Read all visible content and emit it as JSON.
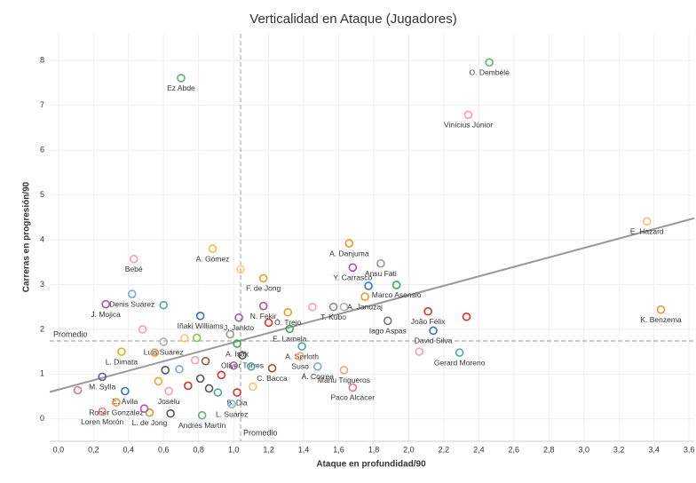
{
  "chart_data": {
    "type": "scatter",
    "title": "Verticalidad en Ataque (Jugadores)",
    "x_label": "Ataque en profundidad/90",
    "y_label": "Carreras en progresión/90",
    "xlim": [
      -0.05,
      3.63
    ],
    "ylim": [
      -0.5,
      8.6
    ],
    "xticks": [
      {
        "value": 0,
        "label": "0,0"
      },
      {
        "value": 0.2,
        "label": "0,2"
      },
      {
        "value": 0.4,
        "label": "0,4"
      },
      {
        "value": 0.6,
        "label": "0,6"
      },
      {
        "value": 0.8,
        "label": "0,8"
      },
      {
        "value": 1,
        "label": "1,0"
      },
      {
        "value": 1.2,
        "label": "1,2"
      },
      {
        "value": 1.4,
        "label": "1,4"
      },
      {
        "value": 1.6,
        "label": "1,6"
      },
      {
        "value": 1.8,
        "label": "1,8"
      },
      {
        "value": 2,
        "label": "2,0"
      },
      {
        "value": 2.2,
        "label": "2,2"
      },
      {
        "value": 2.4,
        "label": "2,4"
      },
      {
        "value": 2.6,
        "label": "2,6"
      },
      {
        "value": 2.8,
        "label": "2,8"
      },
      {
        "value": 3,
        "label": "3,0"
      },
      {
        "value": 3.2,
        "label": "3,2"
      },
      {
        "value": 3.4,
        "label": "3,4"
      },
      {
        "value": 3.6,
        "label": "3,6"
      }
    ],
    "yticks": [
      0,
      1,
      2,
      3,
      4,
      5,
      6,
      7,
      8
    ],
    "grid": true,
    "reference_lines": {
      "x": {
        "value": 1.04,
        "label": "Promedio"
      },
      "y": {
        "value": 1.74,
        "label": "Promedio"
      }
    },
    "trendline": {
      "x": [
        -0.05,
        3.63
      ],
      "y": [
        0.6,
        4.48
      ],
      "color": "#999999"
    },
    "labels": [
      "O. Dembélé",
      "Vinícius Júnior",
      "Ez Abde",
      "E. Hazard",
      "K. Benzema",
      "A. Danjuma",
      "Ansu Fati",
      "Y. Carrasco",
      "Marco Asensio",
      "A. Januzaj",
      "T. Kubo",
      "João Félix",
      "Iago Aspas",
      "David Silva",
      "Gerard Moreno",
      "A. Gómez",
      "F. de Jong",
      "Bebé",
      "Denis Suárez",
      "J. Mojica",
      "N. Fekir",
      "Ó. Trejo",
      "J. Jankto",
      "Iñaki Williams",
      "E. Lamela",
      "A. Isak",
      "Oliver Torres",
      "A. Sørloth",
      "Suso",
      "Á. Correa",
      "Manu Trigueros",
      "Paco Alcácer",
      "C. Bacca",
      "B. Dia",
      "L. Suárez",
      "Andrés Martín",
      "Luis Suárez",
      "L. Dimata",
      "M. Sylla",
      "E. Ávila",
      "Rober González",
      "Joselu",
      "Loren Morón",
      "L. de Jong",
      null,
      null,
      null,
      null,
      null,
      null,
      null,
      null,
      null,
      null,
      null,
      null,
      null,
      null,
      null,
      null,
      null,
      null,
      null,
      null,
      null,
      null,
      null,
      null,
      null,
      null,
      null,
      null,
      null
    ],
    "x": [
      2.46,
      2.34,
      0.7,
      3.36,
      3.44,
      1.66,
      1.84,
      1.68,
      1.93,
      1.75,
      1.57,
      2.11,
      1.88,
      2.14,
      2.29,
      0.88,
      1.17,
      0.43,
      0.42,
      0.27,
      1.17,
      1.31,
      1.03,
      0.81,
      1.32,
      1.02,
      1.05,
      1.39,
      1.38,
      1.48,
      1.63,
      1.68,
      1.22,
      1.02,
      0.99,
      0.82,
      0.6,
      0.36,
      0.25,
      0.38,
      0.33,
      0.63,
      0.25,
      0.52,
      1.77,
      2.33,
      1.63,
      1.04,
      0.6,
      0.48,
      0.72,
      0.79,
      0.98,
      1.45,
      1.2,
      2.06,
      0.55,
      0.61,
      0.69,
      0.78,
      0.84,
      0.93,
      1.0,
      0.81,
      0.74,
      0.86,
      0.91,
      1.11,
      0.11,
      0.49,
      0.64,
      0.57,
      1.1
    ],
    "values": [
      7.96,
      6.79,
      7.61,
      4.41,
      2.44,
      3.92,
      3.47,
      3.38,
      2.99,
      2.73,
      2.5,
      2.4,
      2.19,
      1.97,
      1.48,
      3.8,
      3.14,
      3.57,
      2.79,
      2.56,
      2.52,
      2.38,
      2.26,
      2.3,
      2.01,
      1.68,
      1.42,
      1.62,
      1.4,
      1.17,
      1.09,
      0.7,
      1.13,
      0.59,
      0.33,
      0.08,
      1.72,
      1.5,
      0.94,
      0.62,
      0.37,
      0.62,
      0.16,
      0.14,
      2.97,
      2.28,
      2.5,
      3.34,
      2.54,
      2.0,
      1.8,
      1.81,
      1.89,
      2.5,
      2.15,
      1.5,
      1.48,
      1.09,
      1.11,
      1.31,
      1.29,
      0.98,
      1.19,
      0.9,
      0.74,
      0.68,
      0.59,
      0.72,
      0.64,
      0.23,
      0.12,
      0.84,
      1.17
    ],
    "colors": [
      "#59b36b",
      "#f2a0b5",
      "#59b36b",
      "#f2c46d",
      "#e8962e",
      "#e8962e",
      "#9a9a9a",
      "#a05aa8",
      "#3aa655",
      "#e0a020",
      "#8a8a8a",
      "#c0392b",
      "#777777",
      "#3b6fb6",
      "#4fa8a0",
      "#f2b84b",
      "#d9a520",
      "#f2a0b5",
      "#7aa7d6",
      "#a05aa8",
      "#a05aa8",
      "#d9a520",
      "#a05aa8",
      "#3b6fb6",
      "#3aa655",
      "#3aa655",
      "#555555",
      "#4fa8a0",
      "#f2a56d",
      "#7aa7d6",
      "#f0a090",
      "#e07090",
      "#8b5a3c",
      "#d63030",
      "#7ab8d6",
      "#59b36b",
      "#b0b0b0",
      "#e0b020",
      "#6b4fa0",
      "#3b6fb6",
      "#e8962e",
      "#f2a0b5",
      "#f08080",
      "#e0902e",
      "#3b6fb6",
      "#d63030",
      "#b0b0b0",
      "#f7d07a",
      "#4fa8a0",
      "#f2a0b5",
      "#f2c46d",
      "#8bc34a",
      "#9a9a9a",
      "#f2a0b5",
      "#d63030",
      "#f2a0b5",
      "#e8962e",
      "#555555",
      "#7aa7d6",
      "#f2a0b5",
      "#8b5a3c",
      "#d63030",
      "#a05aa8",
      "#555555",
      "#d63030",
      "#555555",
      "#4fa8a0",
      "#f2c46d",
      "#e07090",
      "#a05aa8",
      "#555555",
      "#e0b020",
      "#4fa8a0"
    ]
  }
}
